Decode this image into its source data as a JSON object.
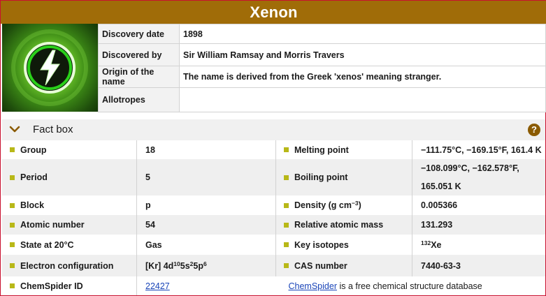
{
  "element": {
    "name": "Xenon"
  },
  "image": {
    "icon": "lightning-bolt-icon",
    "accent": "#6fc82c"
  },
  "discovery": [
    {
      "label": "Discovery date",
      "value": "1898"
    },
    {
      "label": "Discovered by",
      "value": "Sir William Ramsay and Morris Travers"
    },
    {
      "label": "Origin of the name",
      "value": "The name is derived from the Greek 'xenos' meaning stranger."
    },
    {
      "label": "Allotropes",
      "value": ""
    }
  ],
  "factbox": {
    "title": "Fact box",
    "help_label": "?",
    "group": {
      "label": "Group",
      "value": "18"
    },
    "melting_point": {
      "label": "Melting point",
      "value": "−111.75°C, −169.15°F, 161.4 K"
    },
    "period": {
      "label": "Period",
      "value": "5"
    },
    "boiling_point": {
      "label": "Boiling point",
      "value_line1": "−108.099°C, −162.578°F,",
      "value_line2": "165.051 K"
    },
    "block": {
      "label": "Block",
      "value": "p"
    },
    "density": {
      "label": "Density (g cm",
      "label_exp": "−3",
      "label_end": ")",
      "value": "0.005366"
    },
    "atomic_number": {
      "label": "Atomic number",
      "value": "54"
    },
    "relative_atomic_mass": {
      "label": "Relative atomic mass",
      "value": "131.293"
    },
    "state": {
      "label": "State at 20°C",
      "value": "Gas"
    },
    "key_isotopes": {
      "label": "Key isotopes",
      "mass": "132",
      "symbol": "Xe"
    },
    "electron_configuration": {
      "label": "Electron configuration",
      "base": "[Kr] 4d",
      "e1": "10",
      "mid1": "5s",
      "e2": "2",
      "mid2": "5p",
      "e3": "6"
    },
    "cas_number": {
      "label": "CAS number",
      "value": "7440-63-3"
    },
    "chemspider": {
      "label": "ChemSpider ID",
      "id": "22427",
      "link_text": "ChemSpider",
      "note": " is a free chemical structure database"
    }
  },
  "colors": {
    "title_bar": "#a06c08",
    "bullet": "#b8b818",
    "link": "#1a45b8",
    "help_icon": "#8a5a00",
    "frame": "#c8102e"
  }
}
